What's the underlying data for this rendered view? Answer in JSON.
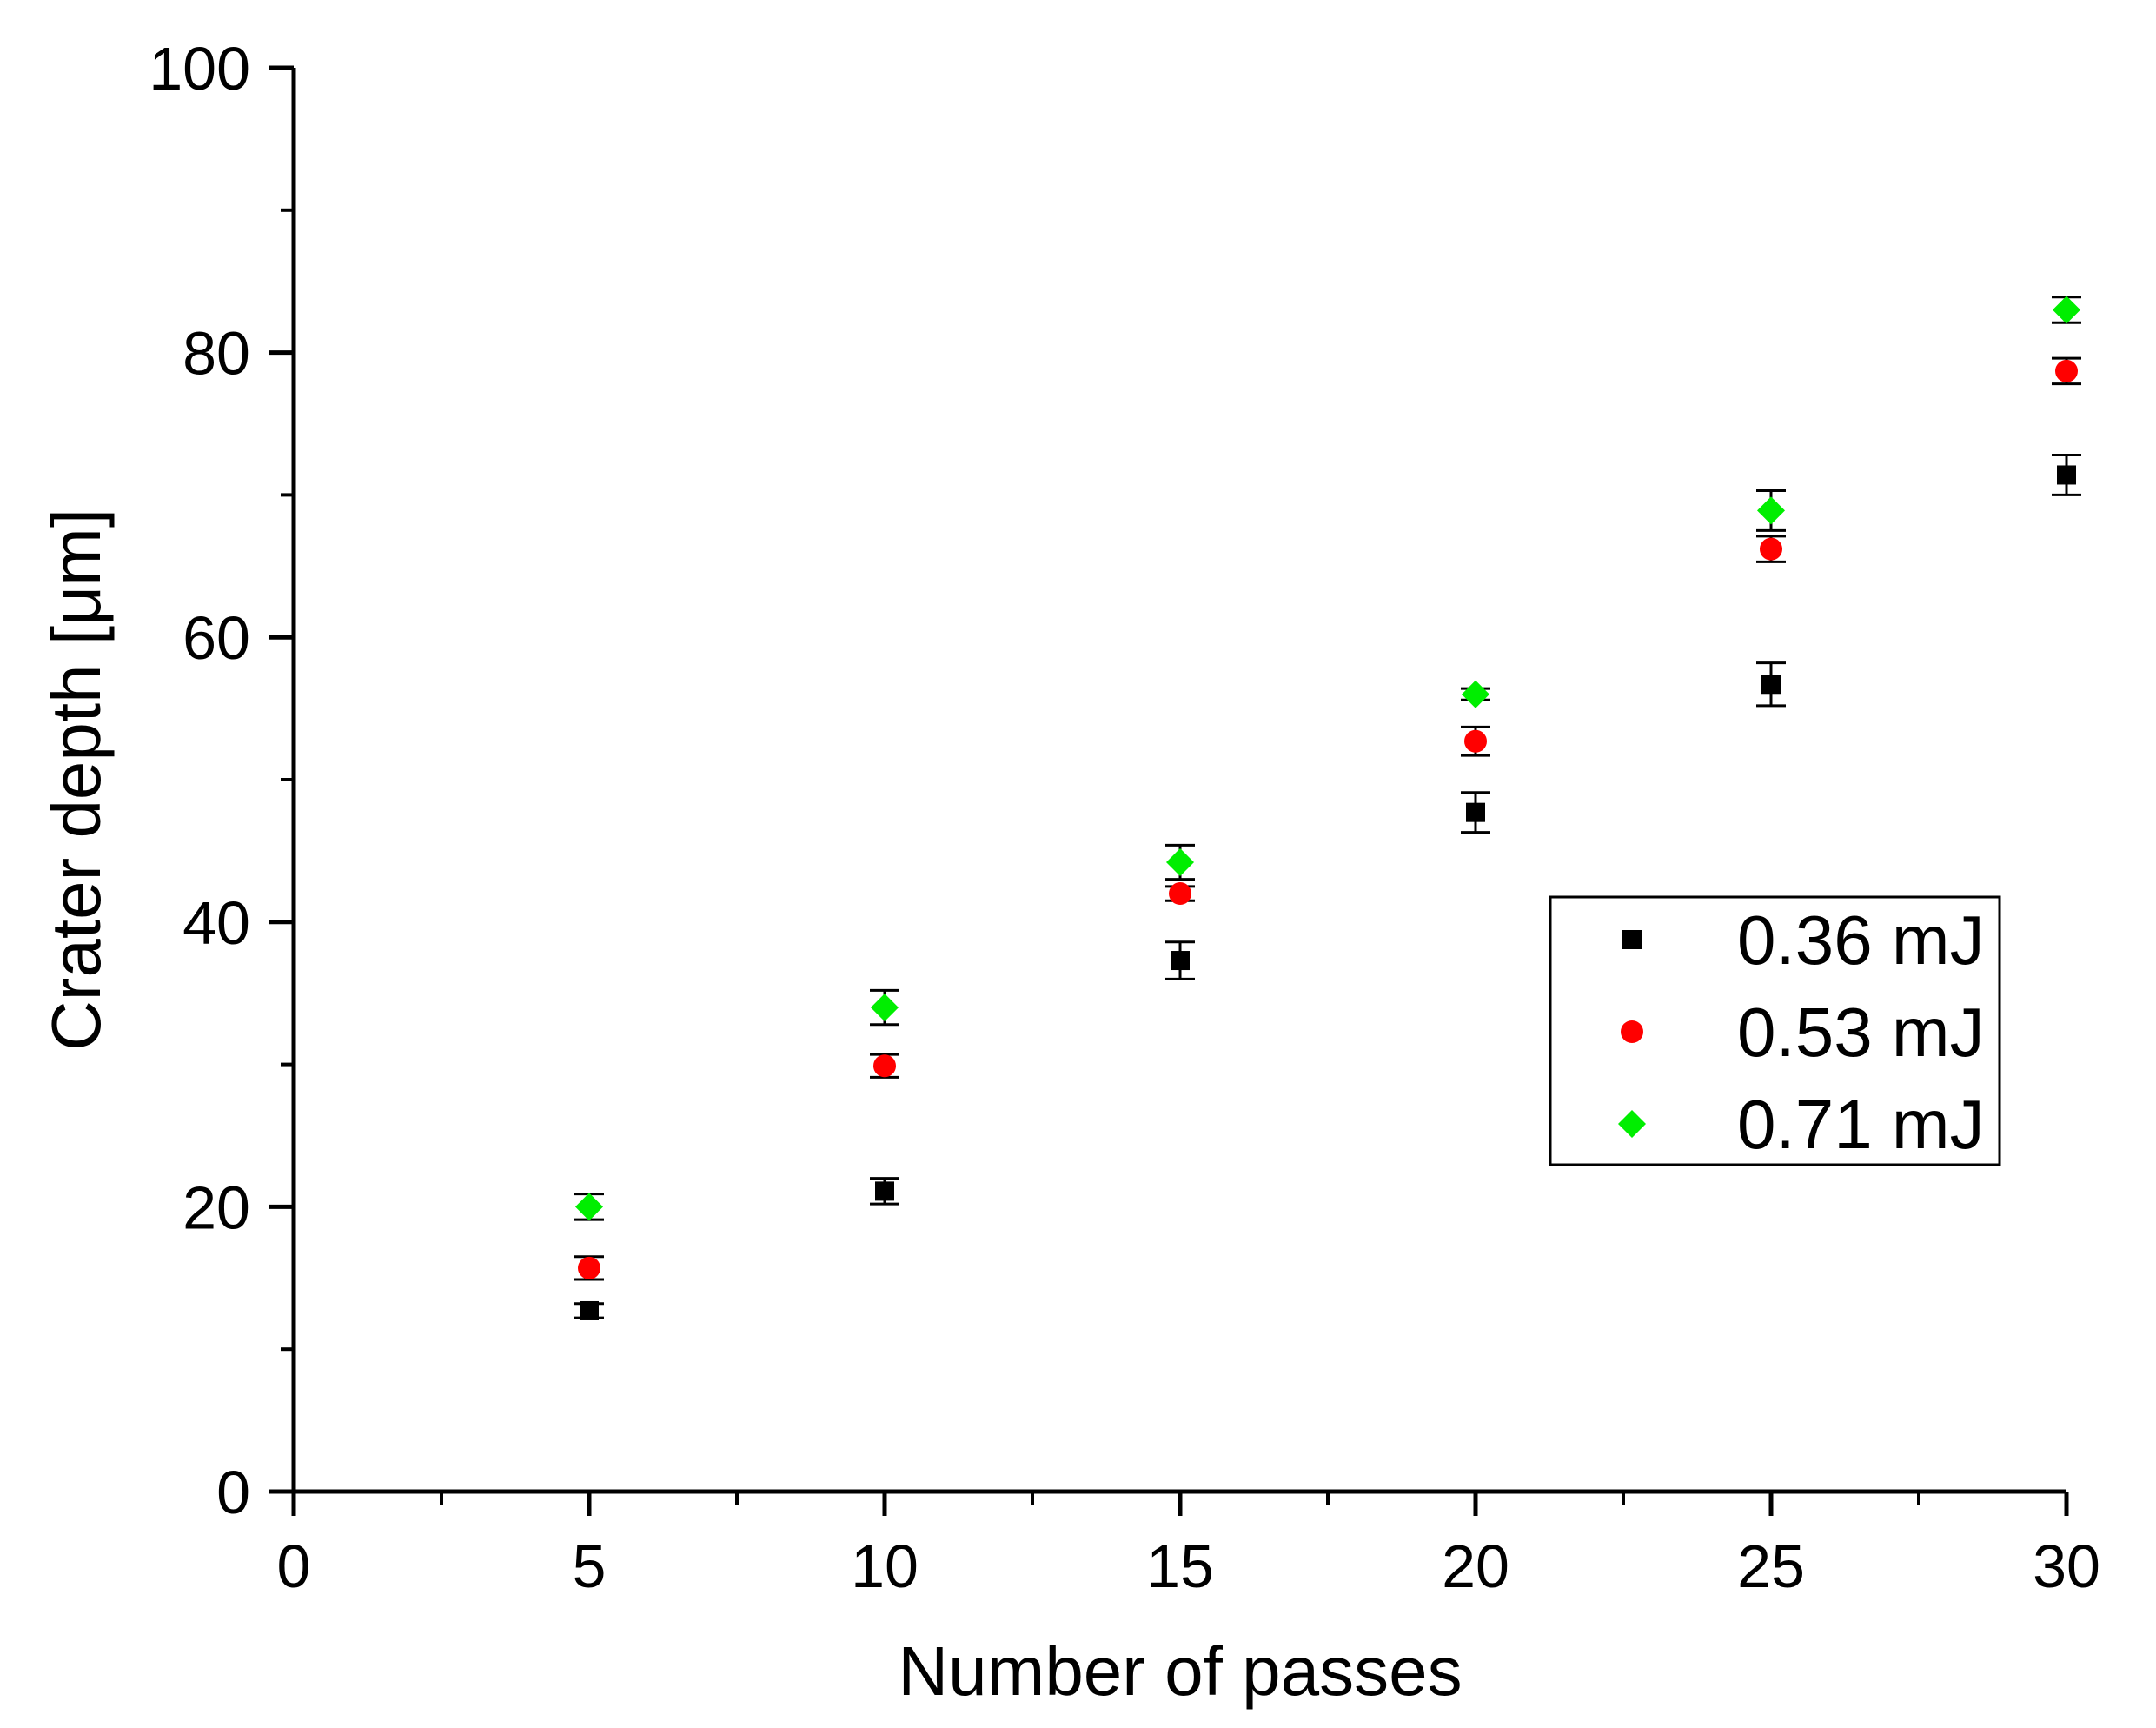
{
  "chart_data": {
    "type": "scatter",
    "title": "",
    "xlabel": "Number of passes",
    "ylabel": "Crater depth [μm]",
    "xlim": [
      0,
      30
    ],
    "ylim": [
      0,
      100
    ],
    "x_major_ticks": [
      0,
      5,
      10,
      15,
      20,
      25,
      30
    ],
    "x_tick_labels": [
      "0",
      "5",
      "10",
      "15",
      "20",
      "25",
      "30"
    ],
    "x_minor_step": 2.5,
    "y_major_ticks": [
      0,
      20,
      40,
      60,
      80,
      100
    ],
    "y_tick_labels": [
      "0",
      "20",
      "40",
      "60",
      "80",
      "100"
    ],
    "y_minor_step": 10,
    "grid": false,
    "legend_position": "center-right",
    "x": [
      5,
      10,
      15,
      20,
      25,
      30
    ],
    "series": [
      {
        "name": "0.36 mJ",
        "marker": "square",
        "color": "#000000",
        "values": [
          12.7,
          21.1,
          37.3,
          47.7,
          56.7,
          71.4
        ],
        "errors": [
          0.5,
          0.9,
          1.3,
          1.4,
          1.5,
          1.4
        ]
      },
      {
        "name": "0.53 mJ",
        "marker": "circle",
        "color": "#ff0000",
        "values": [
          15.7,
          29.9,
          42.0,
          52.7,
          66.2,
          78.7
        ],
        "errors": [
          0.8,
          0.8,
          0.5,
          1.0,
          0.9,
          0.9
        ]
      },
      {
        "name": "0.71 mJ",
        "marker": "diamond",
        "color": "#00ee00",
        "values": [
          20.0,
          34.0,
          44.2,
          56.0,
          68.9,
          83.0
        ],
        "errors": [
          0.9,
          1.2,
          1.2,
          0.4,
          1.4,
          0.9
        ]
      }
    ]
  }
}
